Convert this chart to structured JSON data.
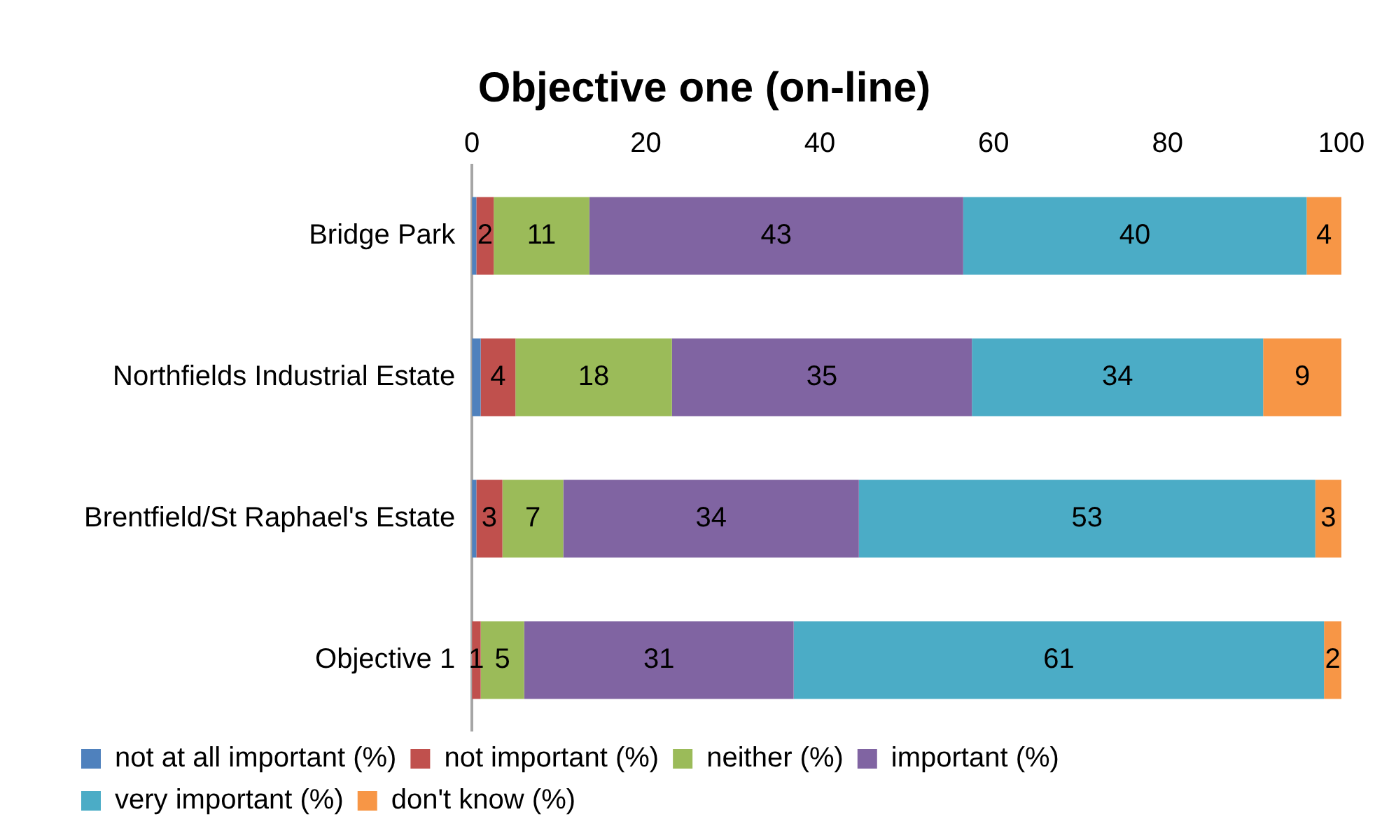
{
  "chart_data": {
    "type": "bar",
    "title": "Objective one (on-line)",
    "orientation": "horizontal",
    "stacked": true,
    "categories": [
      "Bridge Park",
      "Northfields Industrial Estate",
      "Brentfield/St Raphael's Estate",
      "Objective 1"
    ],
    "xlim": [
      0,
      100
    ],
    "xticks": [
      0,
      20,
      40,
      60,
      80,
      100
    ],
    "grid": false,
    "legend": "bottom",
    "series": [
      {
        "name": "not at all important (%)",
        "color": "#4f81bd",
        "values": [
          0.5,
          1,
          0.5,
          0
        ],
        "value_labels": [
          null,
          null,
          null,
          null
        ]
      },
      {
        "name": "not important (%)",
        "color": "#c0504d",
        "values": [
          2,
          4,
          3,
          1
        ],
        "value_labels": [
          "2",
          "4",
          "3",
          "1"
        ]
      },
      {
        "name": "neither (%)",
        "color": "#9bbb59",
        "values": [
          11,
          18,
          7,
          5
        ],
        "value_labels": [
          "11",
          "18",
          "7",
          "5"
        ]
      },
      {
        "name": "important (%)",
        "color": "#8064a2",
        "values": [
          43,
          34.5,
          34,
          31
        ],
        "value_labels": [
          "43",
          "35",
          "34",
          "31"
        ]
      },
      {
        "name": "very important (%)",
        "color": "#4bacc6",
        "values": [
          39.5,
          33.5,
          52.5,
          61
        ],
        "value_labels": [
          "40",
          "34",
          "53",
          "61"
        ]
      },
      {
        "name": "don't know (%)",
        "color": "#f79646",
        "values": [
          4,
          9,
          3,
          2
        ],
        "value_labels": [
          "4",
          "9",
          "3",
          "2"
        ]
      }
    ]
  }
}
